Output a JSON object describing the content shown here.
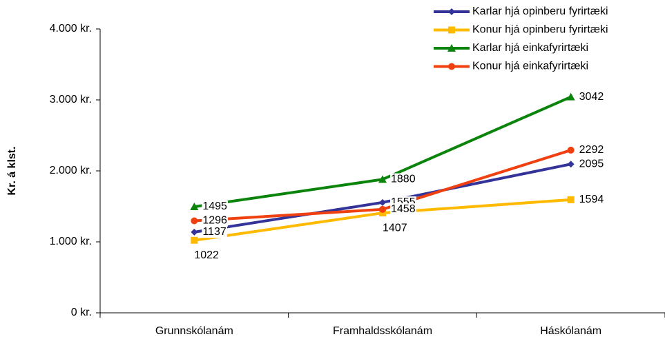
{
  "chart_data": {
    "type": "line",
    "y_label": "Kr. á klst.",
    "categories": [
      "Grunnskólanám",
      "Framhaldsskólanám",
      "Háskólanám"
    ],
    "series": [
      {
        "name": "Karlar hjá opinberu fyrirtæki",
        "color": "#333399",
        "marker": "diamond",
        "values": [
          1137,
          1555,
          2095
        ]
      },
      {
        "name": "Konur hjá opinberu fyrirtæki",
        "color": "#ffba00",
        "marker": "square",
        "values": [
          1022,
          1407,
          1594
        ]
      },
      {
        "name": "Karlar hjá einkafyrirtæki",
        "color": "#0a840a",
        "marker": "triangle",
        "values": [
          1495,
          1880,
          3042
        ]
      },
      {
        "name": "Konur hjá einkafyrirtæki",
        "color": "#f04010",
        "marker": "circle",
        "values": [
          1296,
          1458,
          2292
        ]
      }
    ],
    "ylim": [
      0,
      4000
    ],
    "yticks": [
      {
        "value": 0,
        "label": "0 kr."
      },
      {
        "value": 1000,
        "label": "1.000 kr."
      },
      {
        "value": 2000,
        "label": "2.000 kr."
      },
      {
        "value": 3000,
        "label": "3.000 kr."
      },
      {
        "value": 4000,
        "label": "4.000 kr."
      }
    ],
    "legend": "top-right"
  }
}
